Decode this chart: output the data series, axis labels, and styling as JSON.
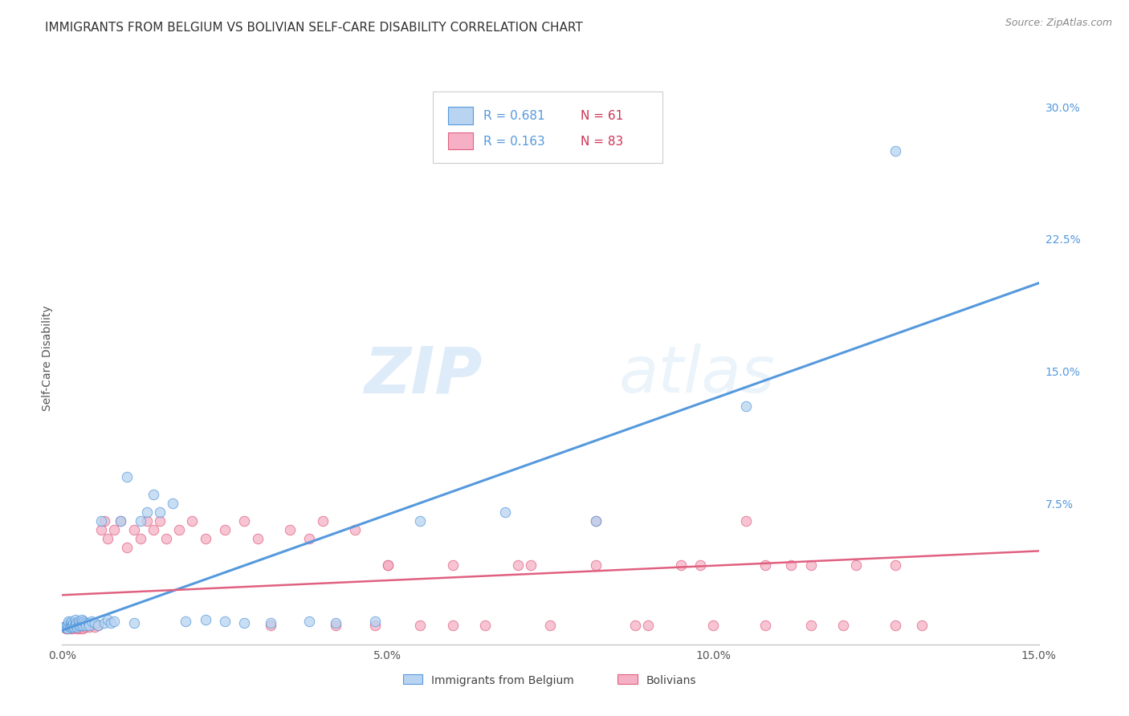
{
  "title": "IMMIGRANTS FROM BELGIUM VS BOLIVIAN SELF-CARE DISABILITY CORRELATION CHART",
  "source": "Source: ZipAtlas.com",
  "ylabel": "Self-Care Disability",
  "watermark_zip": "ZIP",
  "watermark_atlas": "atlas",
  "legend_r1": "R = 0.681",
  "legend_n1": "N = 61",
  "legend_r2": "R = 0.163",
  "legend_n2": "N = 83",
  "series1_label": "Immigrants from Belgium",
  "series2_label": "Bolivians",
  "series1_color": "#b8d4f0",
  "series2_color": "#f5b0c5",
  "line1_color": "#5599dd",
  "line2_color": "#e06080",
  "legend_r_color": "#5599dd",
  "legend_n_color": "#cc3355",
  "background_color": "#ffffff",
  "grid_color": "#cccccc",
  "xmin": 0.0,
  "xmax": 0.15,
  "ymin": -0.005,
  "ymax": 0.32,
  "xticks": [
    0.0,
    0.05,
    0.1,
    0.15
  ],
  "xtick_labels": [
    "0.0%",
    "5.0%",
    "10.0%",
    "15.0%"
  ],
  "yticks_right": [
    0.0,
    0.075,
    0.15,
    0.225,
    0.3
  ],
  "ytick_labels_right": [
    "",
    "7.5%",
    "15.0%",
    "22.5%",
    "30.0%"
  ],
  "blue_x": [
    0.0003,
    0.0005,
    0.0007,
    0.0008,
    0.0009,
    0.001,
    0.001,
    0.0012,
    0.0013,
    0.0014,
    0.0015,
    0.0015,
    0.0016,
    0.0017,
    0.0018,
    0.002,
    0.002,
    0.0021,
    0.0022,
    0.0023,
    0.0025,
    0.0026,
    0.0027,
    0.0028,
    0.003,
    0.003,
    0.0032,
    0.0033,
    0.0035,
    0.0037,
    0.004,
    0.0042,
    0.0045,
    0.005,
    0.0055,
    0.006,
    0.0065,
    0.007,
    0.0075,
    0.008,
    0.009,
    0.01,
    0.011,
    0.012,
    0.013,
    0.014,
    0.015,
    0.017,
    0.019,
    0.022,
    0.025,
    0.028,
    0.032,
    0.038,
    0.042,
    0.048,
    0.055,
    0.068,
    0.082,
    0.105,
    0.128
  ],
  "blue_y": [
    0.005,
    0.005,
    0.006,
    0.004,
    0.007,
    0.006,
    0.008,
    0.005,
    0.007,
    0.006,
    0.005,
    0.008,
    0.006,
    0.007,
    0.005,
    0.007,
    0.009,
    0.006,
    0.007,
    0.005,
    0.006,
    0.008,
    0.007,
    0.006,
    0.007,
    0.009,
    0.006,
    0.008,
    0.007,
    0.006,
    0.007,
    0.006,
    0.008,
    0.007,
    0.006,
    0.065,
    0.007,
    0.009,
    0.007,
    0.008,
    0.065,
    0.09,
    0.007,
    0.065,
    0.07,
    0.08,
    0.07,
    0.075,
    0.008,
    0.009,
    0.008,
    0.007,
    0.007,
    0.008,
    0.007,
    0.008,
    0.065,
    0.07,
    0.065,
    0.13,
    0.275
  ],
  "pink_x": [
    0.0003,
    0.0005,
    0.0006,
    0.0007,
    0.0008,
    0.0009,
    0.001,
    0.001,
    0.0012,
    0.0013,
    0.0014,
    0.0015,
    0.0016,
    0.0017,
    0.0018,
    0.002,
    0.002,
    0.0022,
    0.0023,
    0.0025,
    0.0026,
    0.0027,
    0.003,
    0.003,
    0.0032,
    0.0035,
    0.004,
    0.0042,
    0.0045,
    0.005,
    0.0055,
    0.006,
    0.0065,
    0.007,
    0.008,
    0.009,
    0.01,
    0.011,
    0.012,
    0.013,
    0.014,
    0.015,
    0.016,
    0.018,
    0.02,
    0.022,
    0.025,
    0.028,
    0.03,
    0.032,
    0.035,
    0.038,
    0.04,
    0.042,
    0.045,
    0.048,
    0.05,
    0.055,
    0.06,
    0.065,
    0.07,
    0.075,
    0.082,
    0.088,
    0.095,
    0.1,
    0.108,
    0.115,
    0.122,
    0.128,
    0.05,
    0.06,
    0.072,
    0.082,
    0.09,
    0.098,
    0.108,
    0.115,
    0.12,
    0.128,
    0.132,
    0.105,
    0.112
  ],
  "pink_y": [
    0.005,
    0.005,
    0.004,
    0.005,
    0.004,
    0.006,
    0.005,
    0.006,
    0.005,
    0.004,
    0.005,
    0.006,
    0.004,
    0.005,
    0.006,
    0.005,
    0.006,
    0.005,
    0.004,
    0.006,
    0.005,
    0.004,
    0.005,
    0.006,
    0.004,
    0.005,
    0.006,
    0.005,
    0.006,
    0.005,
    0.006,
    0.06,
    0.065,
    0.055,
    0.06,
    0.065,
    0.05,
    0.06,
    0.055,
    0.065,
    0.06,
    0.065,
    0.055,
    0.06,
    0.065,
    0.055,
    0.06,
    0.065,
    0.055,
    0.006,
    0.06,
    0.055,
    0.065,
    0.006,
    0.06,
    0.006,
    0.04,
    0.006,
    0.04,
    0.006,
    0.04,
    0.006,
    0.04,
    0.006,
    0.04,
    0.006,
    0.04,
    0.006,
    0.04,
    0.006,
    0.04,
    0.006,
    0.04,
    0.065,
    0.006,
    0.04,
    0.006,
    0.04,
    0.006,
    0.04,
    0.006,
    0.065,
    0.04
  ],
  "title_fontsize": 11,
  "axis_label_fontsize": 10,
  "tick_fontsize": 10,
  "legend_fontsize": 11,
  "marker_size": 9
}
